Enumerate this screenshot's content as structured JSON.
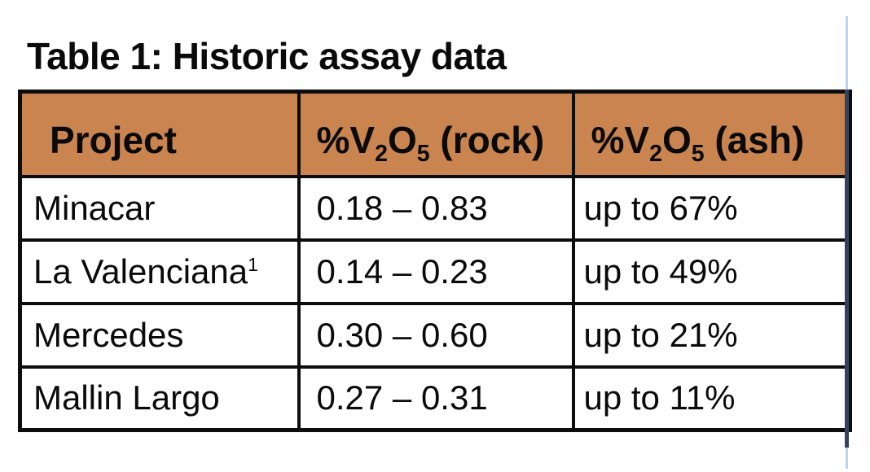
{
  "title": "Table 1: Historic assay data",
  "colors": {
    "header_bg": "#C98450",
    "border": "#0d0d0d",
    "line_light": "#BAD4F2",
    "line_dark": "#36425C"
  },
  "table": {
    "headers": {
      "project": "Project",
      "rock": {
        "pre": "%V",
        "sub1": "2",
        "mid": "O",
        "sub2": "5",
        "post": " (rock)"
      },
      "ash": {
        "pre": "%V",
        "sub1": "2",
        "mid": "O",
        "sub2": "5",
        "post": " (ash)"
      }
    },
    "rows": [
      {
        "project": "Minacar",
        "project_sup": "",
        "rock": "0.18 – 0.83",
        "ash": "up to 67%"
      },
      {
        "project": "La Valenciana",
        "project_sup": "1",
        "rock": "0.14 – 0.23",
        "ash": "up to 49%"
      },
      {
        "project": "Mercedes",
        "project_sup": "",
        "rock": "0.30 – 0.60",
        "ash": "up to 21%"
      },
      {
        "project": "Mallin Largo",
        "project_sup": "",
        "rock": "0.27 – 0.31",
        "ash": "up to 11%"
      }
    ]
  }
}
